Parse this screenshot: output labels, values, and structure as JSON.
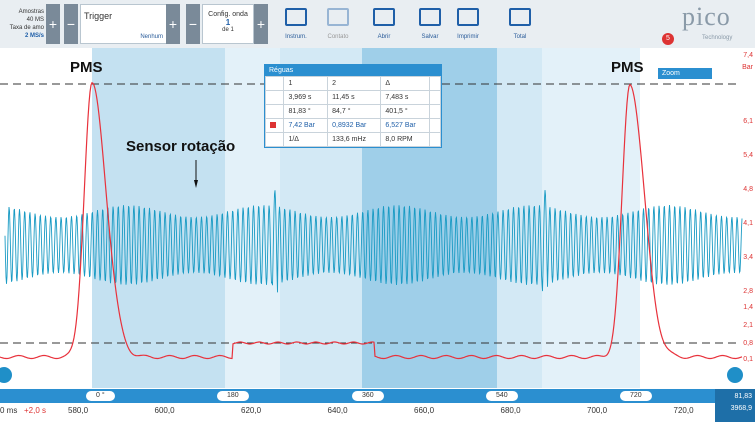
{
  "toolbar": {
    "samples_label": "Amostras",
    "samples": "40 MS",
    "rate_label": "Taxa de amo",
    "rate": "2 MS/s",
    "trigger": "Trigger",
    "trigger_mode": "Nenhum",
    "waveform_label": "Config. onda",
    "waveform_index": "1",
    "waveform_total": "de 1",
    "buttons": [
      "Instrum.",
      "Contato",
      "Abrir",
      "Salvar",
      "Imprimir",
      "Total"
    ]
  },
  "logo": {
    "name": "pico",
    "sub": "Technology"
  },
  "badge": "5",
  "annotations": {
    "pms_left": "PMS",
    "sensor": "Sensor rotação",
    "pms_right": "PMS"
  },
  "rulers": {
    "title": "Réguas",
    "header": [
      "1",
      "2",
      "Δ"
    ],
    "rows": [
      [
        "3,969 s",
        "11,45 s",
        "7,483 s"
      ],
      [
        "81,83 °",
        "84,7 °",
        "401,5 °"
      ],
      [
        "7,42 Bar",
        "0,8932 Bar",
        "6,527 Bar"
      ]
    ],
    "freq": [
      "1/Δ",
      "133,6 mHz",
      "8,0 RPM"
    ]
  },
  "zoom": "Zoom",
  "right_axis": {
    "unit": "Bar",
    "top": "7,4",
    "labels": [
      "7,4",
      "6,1",
      "5,4",
      "4,8",
      "4,1",
      "3,4",
      "2,8",
      "2,1",
      "1,4",
      "0,8",
      "0,1"
    ]
  },
  "degree_axis": [
    "0 °",
    "180",
    "360",
    "540",
    "720"
  ],
  "time_axis": {
    "start": "0 ms",
    "offset": "+2,0 s",
    "ticks": [
      "580,0",
      "600,0",
      "620,0",
      "640,0",
      "660,0",
      "680,0",
      "700,0",
      "720,0"
    ]
  },
  "readout": [
    "81,83",
    "3968,9"
  ]
}
